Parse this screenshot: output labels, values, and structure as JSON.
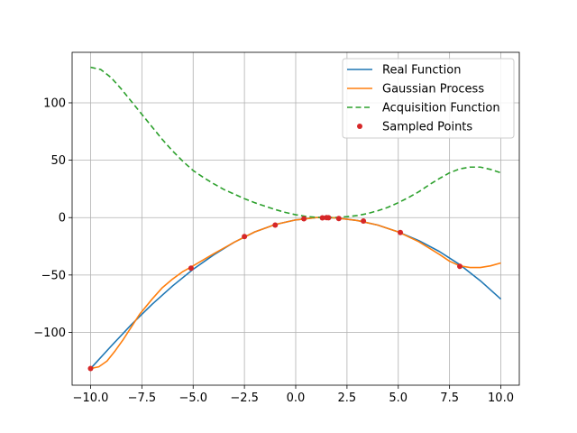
{
  "chart_data": {
    "type": "line",
    "title": "",
    "xlabel": "",
    "ylabel": "",
    "xlim": [
      -10.9,
      10.9
    ],
    "ylim": [
      -146,
      144
    ],
    "grid": true,
    "legend_position": "top-right",
    "x_ticks": [
      -10.0,
      -7.5,
      -5.0,
      -2.5,
      0.0,
      2.5,
      5.0,
      7.5,
      10.0
    ],
    "x_tick_labels": [
      "−10.0",
      "−7.5",
      "−5.0",
      "−2.5",
      "0.0",
      "2.5",
      "5.0",
      "7.5",
      "10.0"
    ],
    "y_ticks": [
      -100,
      -50,
      0,
      50,
      100
    ],
    "y_tick_labels": [
      "−100",
      "−50",
      "0",
      "50",
      "100"
    ],
    "series": [
      {
        "name": "Real Function",
        "style": "solid",
        "color": "#1f77b4",
        "points": [
          [
            -10,
            -131.5
          ],
          [
            -9,
            -112
          ],
          [
            -8,
            -93
          ],
          [
            -7,
            -75.5
          ],
          [
            -6,
            -59.5
          ],
          [
            -5,
            -45
          ],
          [
            -4,
            -32.5
          ],
          [
            -3,
            -21.5
          ],
          [
            -2,
            -12.5
          ],
          [
            -1,
            -6
          ],
          [
            0,
            -2
          ],
          [
            1,
            0
          ],
          [
            1.5,
            0
          ],
          [
            2,
            -0.3
          ],
          [
            3,
            -2.5
          ],
          [
            4,
            -6.5
          ],
          [
            5,
            -12.5
          ],
          [
            6,
            -20
          ],
          [
            7,
            -29.5
          ],
          [
            8,
            -41
          ],
          [
            9,
            -55
          ],
          [
            10,
            -71
          ]
        ]
      },
      {
        "name": "Gaussian Process",
        "style": "solid",
        "color": "#ff7f0e",
        "points": [
          [
            -10,
            -131.5
          ],
          [
            -9.6,
            -130
          ],
          [
            -9.2,
            -125
          ],
          [
            -8.8,
            -116
          ],
          [
            -8.4,
            -106
          ],
          [
            -8,
            -95
          ],
          [
            -7.6,
            -84
          ],
          [
            -7,
            -71
          ],
          [
            -6.5,
            -61
          ],
          [
            -6,
            -53.5
          ],
          [
            -5.5,
            -47
          ],
          [
            -5,
            -42
          ],
          [
            -4,
            -31.5
          ],
          [
            -3,
            -21.5
          ],
          [
            -2,
            -12.5
          ],
          [
            -1,
            -6
          ],
          [
            0,
            -2
          ],
          [
            1,
            0
          ],
          [
            1.5,
            0
          ],
          [
            2,
            -0.3
          ],
          [
            3,
            -2.5
          ],
          [
            4,
            -6.5
          ],
          [
            5,
            -12.5
          ],
          [
            6,
            -21
          ],
          [
            7,
            -32
          ],
          [
            7.5,
            -38
          ],
          [
            8,
            -42
          ],
          [
            8.5,
            -43.5
          ],
          [
            9,
            -43.5
          ],
          [
            9.5,
            -42
          ],
          [
            10,
            -39.5
          ]
        ]
      },
      {
        "name": "Acquisition Function",
        "style": "dashed",
        "color": "#2ca02c",
        "points": [
          [
            -10,
            131
          ],
          [
            -9.5,
            129
          ],
          [
            -9,
            122
          ],
          [
            -8.5,
            112
          ],
          [
            -8,
            101
          ],
          [
            -7.5,
            90
          ],
          [
            -7,
            79
          ],
          [
            -6.5,
            68
          ],
          [
            -6,
            58
          ],
          [
            -5.5,
            49
          ],
          [
            -5,
            41
          ],
          [
            -4.5,
            35
          ],
          [
            -4,
            29.5
          ],
          [
            -3.5,
            24.5
          ],
          [
            -3,
            20.5
          ],
          [
            -2.5,
            16.5
          ],
          [
            -2,
            13
          ],
          [
            -1.5,
            10
          ],
          [
            -1,
            7
          ],
          [
            -0.5,
            4.5
          ],
          [
            0,
            2.5
          ],
          [
            0.5,
            1
          ],
          [
            1,
            0.3
          ],
          [
            1.5,
            0
          ],
          [
            2,
            0.2
          ],
          [
            2.5,
            0.8
          ],
          [
            3,
            1.8
          ],
          [
            3.5,
            3.5
          ],
          [
            4,
            6
          ],
          [
            4.5,
            9
          ],
          [
            5,
            13
          ],
          [
            5.5,
            17.5
          ],
          [
            6,
            22.5
          ],
          [
            6.5,
            28.5
          ],
          [
            7,
            34
          ],
          [
            7.5,
            39
          ],
          [
            8,
            42.5
          ],
          [
            8.5,
            44
          ],
          [
            9,
            44
          ],
          [
            9.5,
            42
          ],
          [
            10,
            39
          ]
        ]
      },
      {
        "name": "Sampled Points",
        "style": "markers",
        "color": "#d62728",
        "points": [
          [
            -10,
            -131.5
          ],
          [
            -5.1,
            -44
          ],
          [
            -2.5,
            -16.5
          ],
          [
            -1,
            -6.5
          ],
          [
            0.4,
            -1
          ],
          [
            1.3,
            -0.2
          ],
          [
            1.5,
            0
          ],
          [
            1.6,
            -0.1
          ],
          [
            2.1,
            -0.8
          ],
          [
            3.3,
            -3
          ],
          [
            5.1,
            -13
          ],
          [
            8,
            -42.5
          ]
        ]
      }
    ]
  }
}
